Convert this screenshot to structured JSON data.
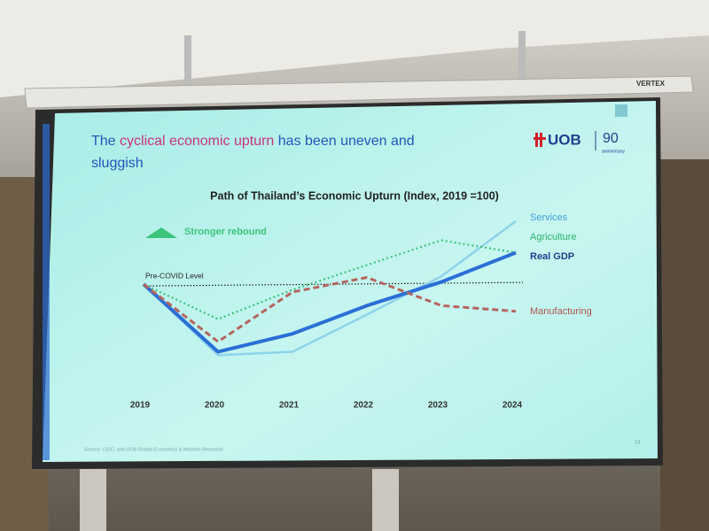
{
  "chart_data": {
    "type": "line",
    "projector_brand": "VERTEX",
    "headline_parts": [
      "The",
      "cyclical economic upturn",
      "has been uneven and",
      "sluggish"
    ],
    "logo": {
      "bank": "UOB",
      "anniversary": "90",
      "anniversary_word": "anniversary"
    },
    "title": "Path of Thailand’s Economic Upturn (Index, 2019 =100)",
    "annotation": "Stronger rebound",
    "reference_line": {
      "label": "Pre-COVID Level",
      "value": 100
    },
    "categories": [
      "2019",
      "2020",
      "2021",
      "2022",
      "2023",
      "2024"
    ],
    "series": [
      {
        "name": "Services",
        "color": "#3f9fda",
        "line_color": "#8fd3ea",
        "style": "solid",
        "values": [
          100,
          93.7,
          94,
          97.3,
          100.7,
          105.6
        ]
      },
      {
        "name": "Agriculture",
        "color": "#2fb56a",
        "line_color": "#3cc47c",
        "style": "dotted",
        "values": [
          100,
          96.9,
          99.5,
          101.7,
          103.9,
          102.8
        ]
      },
      {
        "name": "Real GDP",
        "color": "#1d3f8f",
        "line_color": "#2a6fd6",
        "style": "bold",
        "values": [
          100,
          94,
          95.6,
          98.1,
          100.2,
          102.8
        ]
      },
      {
        "name": "Manufacturing",
        "color": "#b0554f",
        "line_color": "#b5655e",
        "style": "dashed",
        "values": [
          100,
          94.9,
          99.3,
          100.6,
          98.1,
          97.6
        ]
      }
    ],
    "ylim": [
      92,
      107
    ],
    "source": "Source: CEIC, and UOB Global Economics & Markets Research",
    "page_number": "24"
  }
}
